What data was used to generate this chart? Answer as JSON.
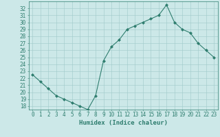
{
  "x": [
    0,
    1,
    2,
    3,
    4,
    5,
    6,
    7,
    8,
    9,
    10,
    11,
    12,
    13,
    14,
    15,
    16,
    17,
    18,
    19,
    20,
    21,
    22,
    23
  ],
  "y": [
    22.5,
    21.5,
    20.5,
    19.5,
    19.0,
    18.5,
    18.0,
    17.5,
    19.5,
    24.5,
    26.5,
    27.5,
    29.0,
    29.5,
    30.0,
    30.5,
    31.0,
    32.5,
    30.0,
    29.0,
    28.5,
    27.0,
    26.0,
    25.0
  ],
  "xlabel": "Humidex (Indice chaleur)",
  "line_color": "#2e7d6e",
  "marker_color": "#2e7d6e",
  "bg_color": "#cce8e8",
  "grid_color": "#9fc8c8",
  "tick_color": "#2e7d6e",
  "ylim": [
    17.5,
    33
  ],
  "xlim": [
    -0.5,
    23.5
  ],
  "yticks": [
    18,
    19,
    20,
    21,
    22,
    23,
    24,
    25,
    26,
    27,
    28,
    29,
    30,
    31,
    32
  ],
  "xticks": [
    0,
    1,
    2,
    3,
    4,
    5,
    6,
    7,
    8,
    9,
    10,
    11,
    12,
    13,
    14,
    15,
    16,
    17,
    18,
    19,
    20,
    21,
    22,
    23
  ],
  "xtick_labels": [
    "0",
    "1",
    "2",
    "3",
    "4",
    "5",
    "6",
    "7",
    "8",
    "9",
    "10",
    "11",
    "12",
    "13",
    "14",
    "15",
    "16",
    "17",
    "18",
    "19",
    "20",
    "21",
    "22",
    "23"
  ],
  "ytick_labels": [
    "18",
    "19",
    "20",
    "21",
    "22",
    "23",
    "24",
    "25",
    "26",
    "27",
    "28",
    "29",
    "30",
    "31",
    "32"
  ],
  "tick_fontsize": 5.5,
  "xlabel_fontsize": 6.5
}
